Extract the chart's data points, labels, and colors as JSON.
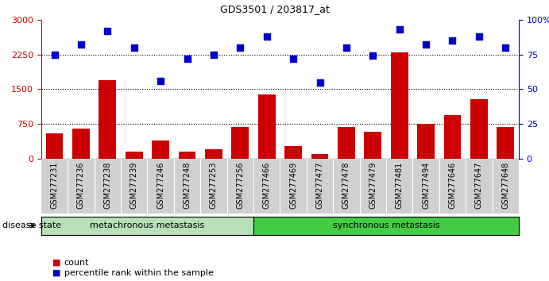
{
  "title": "GDS3501 / 203817_at",
  "samples": [
    "GSM277231",
    "GSM277236",
    "GSM277238",
    "GSM277239",
    "GSM277246",
    "GSM277248",
    "GSM277253",
    "GSM277256",
    "GSM277466",
    "GSM277469",
    "GSM277477",
    "GSM277478",
    "GSM277479",
    "GSM277481",
    "GSM277494",
    "GSM277646",
    "GSM277647",
    "GSM277648"
  ],
  "counts": [
    550,
    650,
    1700,
    150,
    400,
    150,
    200,
    680,
    1380,
    270,
    110,
    680,
    590,
    2300,
    760,
    950,
    1280,
    680
  ],
  "percentiles": [
    75,
    82,
    92,
    80,
    56,
    72,
    75,
    80,
    88,
    72,
    55,
    80,
    74,
    93,
    82,
    85,
    88,
    80
  ],
  "metachronous_count": 8,
  "synchronous_count": 10,
  "bar_color": "#cc0000",
  "dot_color": "#0000cc",
  "ylim_left": [
    0,
    3000
  ],
  "ylim_right": [
    0,
    100
  ],
  "yticks_left": [
    0,
    750,
    1500,
    2250,
    3000
  ],
  "yticks_right": [
    0,
    25,
    50,
    75,
    100
  ],
  "grid_values": [
    750,
    1500,
    2250
  ],
  "legend_count_label": "count",
  "legend_percentile_label": "percentile rank within the sample",
  "disease_state_label": "disease state",
  "metachronous_label": "metachronous metastasis",
  "synchronous_label": "synchronous metastasis",
  "group1_color": "#b8e0b8",
  "group2_color": "#44cc44",
  "bg_color": "#ffffff",
  "tick_bg_color": "#d0d0d0"
}
